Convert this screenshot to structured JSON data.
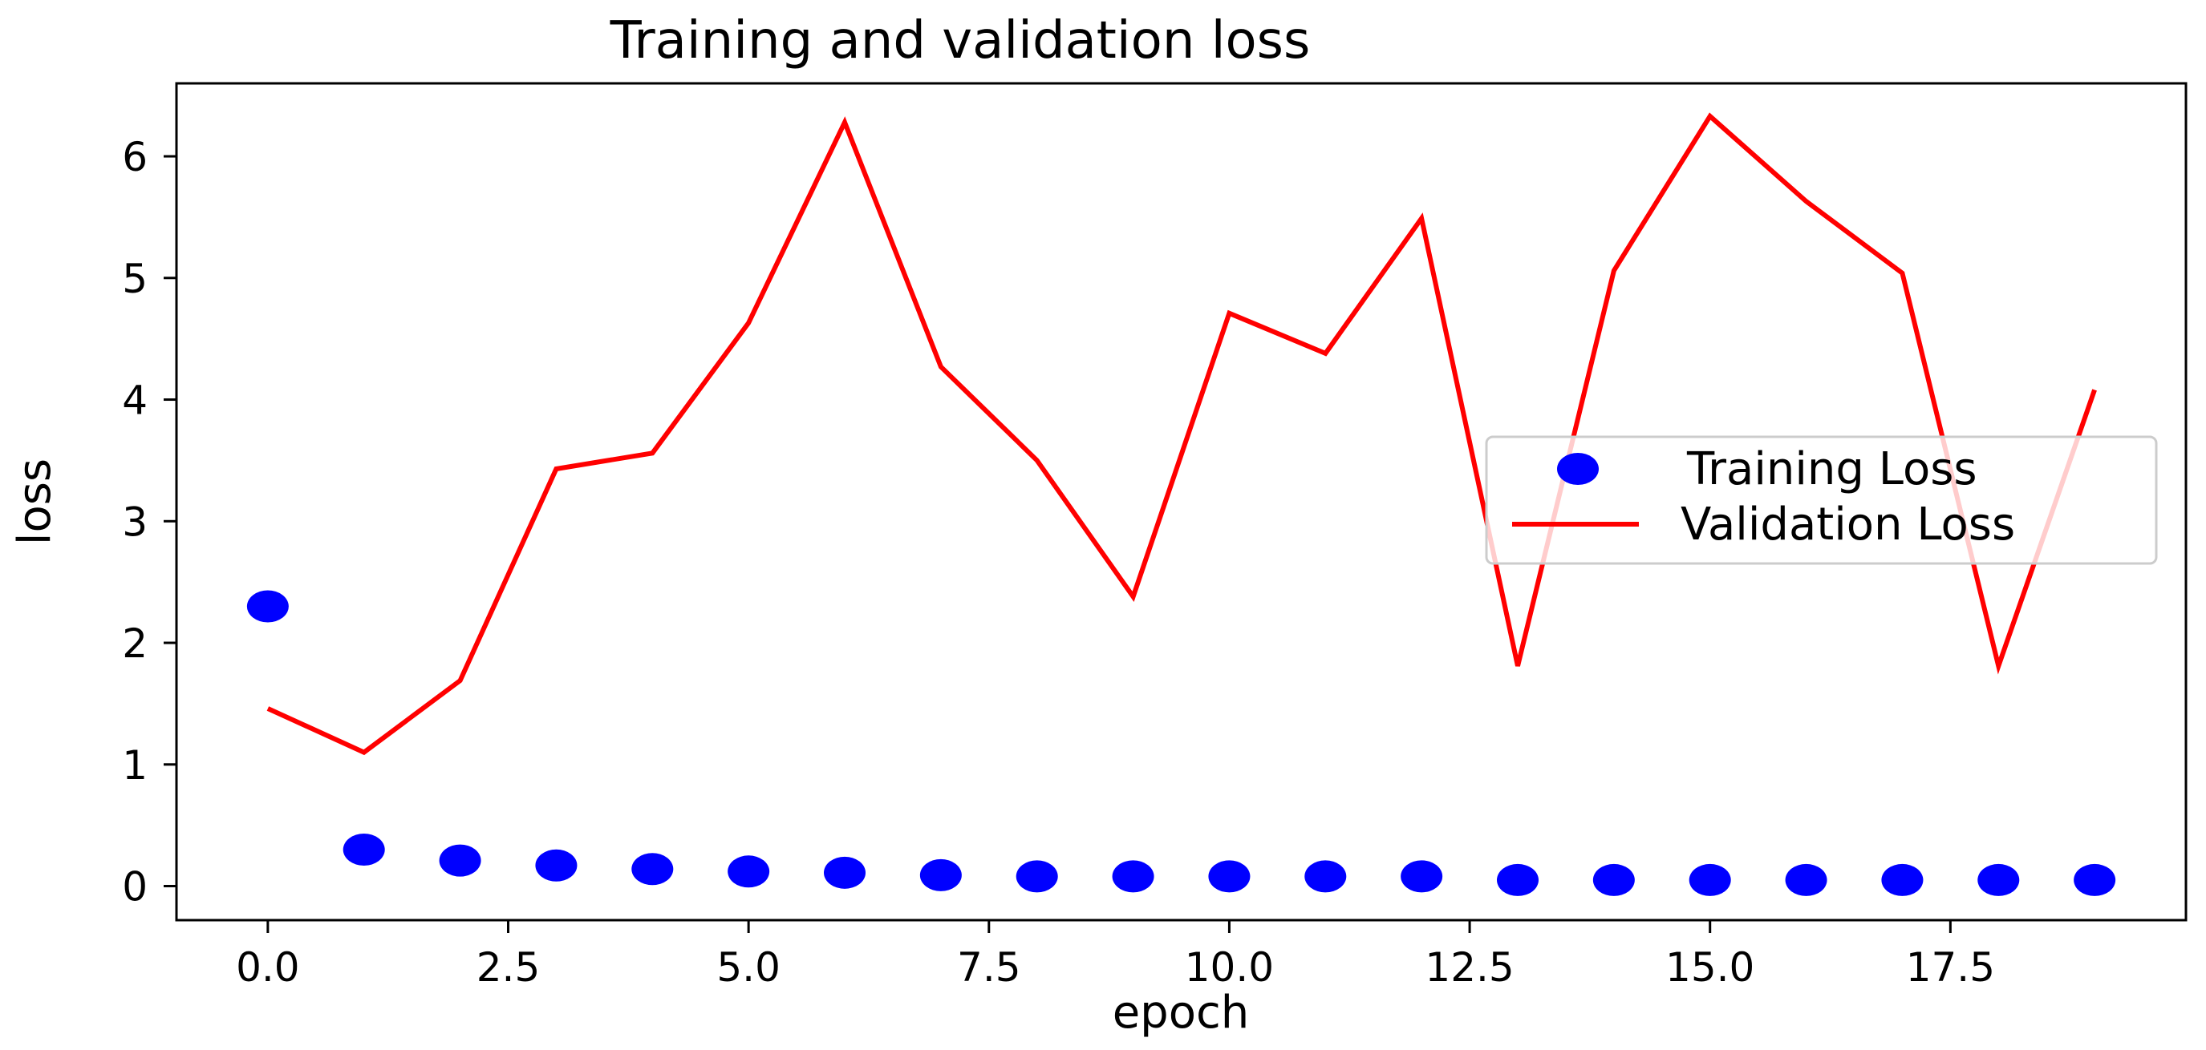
{
  "chart_data": {
    "type": "line",
    "title": "Training and validation loss",
    "xlabel": "epoch",
    "ylabel": "loss",
    "xlim": [
      -0.95,
      19.95
    ],
    "ylim": [
      -0.28,
      6.6
    ],
    "x_ticks": [
      0.0,
      2.5,
      5.0,
      7.5,
      10.0,
      12.5,
      15.0,
      17.5
    ],
    "x_tick_labels": [
      "0.0",
      "2.5",
      "5.0",
      "7.5",
      "10.0",
      "12.5",
      "15.0",
      "17.5"
    ],
    "y_ticks": [
      0,
      1,
      2,
      3,
      4,
      5,
      6
    ],
    "y_tick_labels": [
      "0",
      "1",
      "2",
      "3",
      "4",
      "5",
      "6"
    ],
    "grid": false,
    "legend_position": "center-right",
    "x": [
      0,
      1,
      2,
      3,
      4,
      5,
      6,
      7,
      8,
      9,
      10,
      11,
      12,
      13,
      14,
      15,
      16,
      17,
      18,
      19
    ],
    "series": [
      {
        "name": "Training Loss",
        "style": "dots",
        "color": "#0000ff",
        "values": [
          2.3,
          0.3,
          0.21,
          0.17,
          0.14,
          0.12,
          0.11,
          0.09,
          0.08,
          0.08,
          0.08,
          0.08,
          0.08,
          0.05,
          0.05,
          0.05,
          0.05,
          0.05,
          0.05,
          0.05
        ]
      },
      {
        "name": "Validation Loss",
        "style": "line",
        "color": "#ff0000",
        "values": [
          1.46,
          1.1,
          1.69,
          3.43,
          3.56,
          4.63,
          6.28,
          4.27,
          3.5,
          2.38,
          4.71,
          4.38,
          5.49,
          1.81,
          5.06,
          6.33,
          5.63,
          5.04,
          1.81,
          4.08
        ]
      }
    ]
  }
}
